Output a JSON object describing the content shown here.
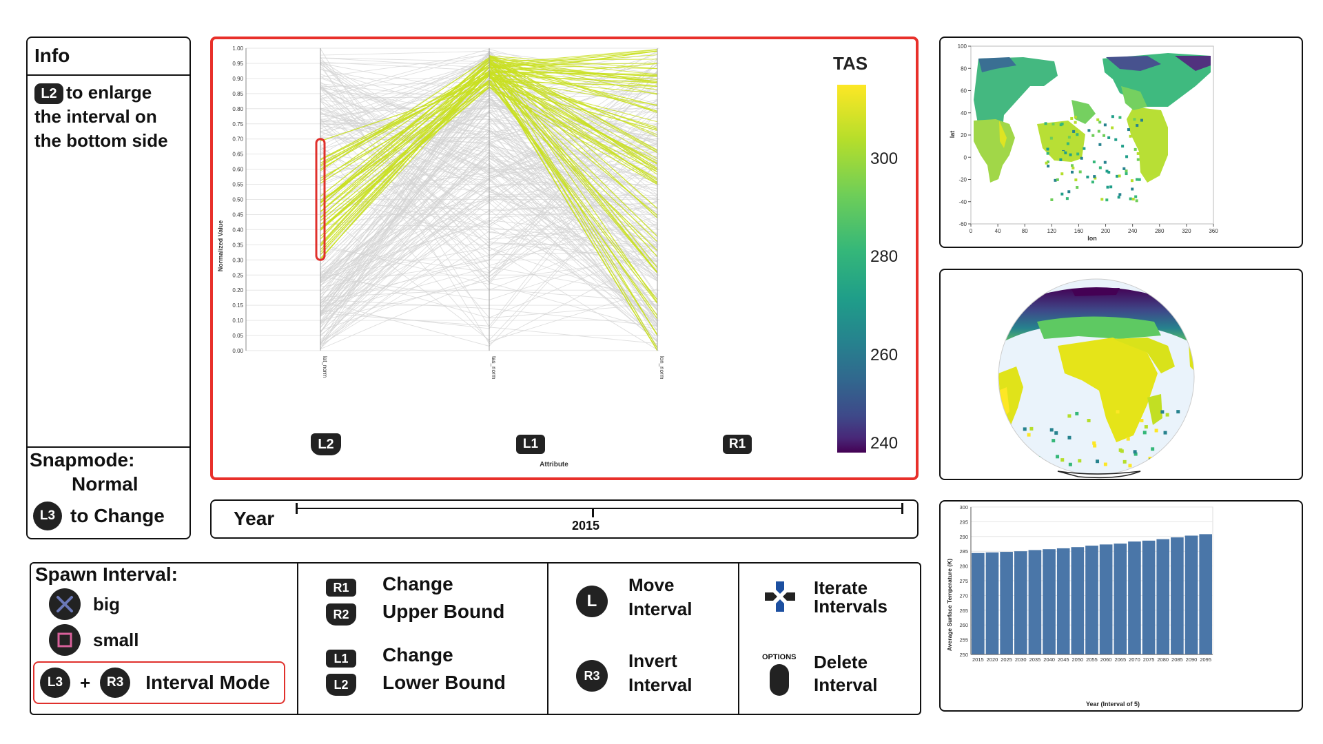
{
  "info": {
    "title": "Info",
    "hint_button": "L2",
    "hint_lines": [
      "to enlarge",
      "the interval on",
      "the bottom side"
    ],
    "snapmode_label": "Snapmode:",
    "snapmode_value": "Normal",
    "change_button": "L3",
    "change_text": "to Change"
  },
  "parcoords": {
    "ylabel": "Normalized Value",
    "xlabel": "Attribute",
    "yticks": [
      "1.00",
      "0.95",
      "0.90",
      "0.85",
      "0.80",
      "0.75",
      "0.70",
      "0.65",
      "0.60",
      "0.55",
      "0.50",
      "0.45",
      "0.40",
      "0.35",
      "0.30",
      "0.25",
      "0.20",
      "0.15",
      "0.10",
      "0.05",
      "0.00"
    ],
    "axes": [
      {
        "attr": "lat_norm",
        "button": "L2"
      },
      {
        "attr": "tas_norm",
        "button": "L1"
      },
      {
        "attr": "lon_norm",
        "button": "R1"
      }
    ],
    "selected_interval": [
      0.3,
      0.7
    ],
    "colorbar_title": "TAS",
    "colorbar_ticks": [
      "300",
      "280",
      "260",
      "240"
    ],
    "colors": {
      "gray": "#d3d3d3",
      "highlight": "#c9e020",
      "selection": "#e0302c",
      "frame": "#e8302a"
    }
  },
  "year": {
    "label": "Year",
    "value": "2015"
  },
  "controls": {
    "spawn_title": "Spawn Interval:",
    "spawn_big": "big",
    "spawn_small": "small",
    "mode_button_a": "L3",
    "mode_plus": "+",
    "mode_button_b": "R3",
    "mode_label": "Interval Mode",
    "upper_buttons": [
      "R1",
      "R2"
    ],
    "upper_text": [
      "Change",
      "Upper Bound"
    ],
    "lower_buttons": [
      "L1",
      "L2"
    ],
    "lower_text": [
      "Change",
      "Lower Bound"
    ],
    "move_button": "L",
    "move_text": [
      "Move",
      "Interval"
    ],
    "invert_button": "R3",
    "invert_text": [
      "Invert",
      "Interval"
    ],
    "iterate_text": [
      "Iterate",
      "Intervals"
    ],
    "options_label": "OPTIONS",
    "delete_text": [
      "Delete",
      "Interval"
    ]
  },
  "map": {
    "xlabel": "lon",
    "ylabel": "lat",
    "xticks": [
      "0",
      "40",
      "80",
      "120",
      "160",
      "200",
      "240",
      "280",
      "320",
      "360"
    ],
    "yticks": [
      "100",
      "80",
      "60",
      "40",
      "20",
      "0",
      "-20",
      "-40",
      "-60"
    ]
  },
  "chart_data": {
    "type": "bar",
    "title": "",
    "xlabel": "Year (Interval of 5)",
    "ylabel": "Average Surface Temperature (K)",
    "categories": [
      "2015",
      "2020",
      "2025",
      "2030",
      "2035",
      "2040",
      "2045",
      "2050",
      "2055",
      "2060",
      "2065",
      "2070",
      "2075",
      "2080",
      "2085",
      "2090",
      "2095"
    ],
    "values": [
      284.4,
      284.6,
      284.8,
      285.0,
      285.4,
      285.7,
      286.0,
      286.4,
      286.9,
      287.3,
      287.6,
      288.3,
      288.6,
      289.1,
      289.7,
      290.3,
      290.8
    ],
    "ylim": [
      250,
      300
    ],
    "yticks": [
      "300",
      "295",
      "290",
      "285",
      "280",
      "275",
      "270",
      "265",
      "260",
      "255",
      "250"
    ],
    "bar_color": "#4a76a8",
    "grid": true
  }
}
